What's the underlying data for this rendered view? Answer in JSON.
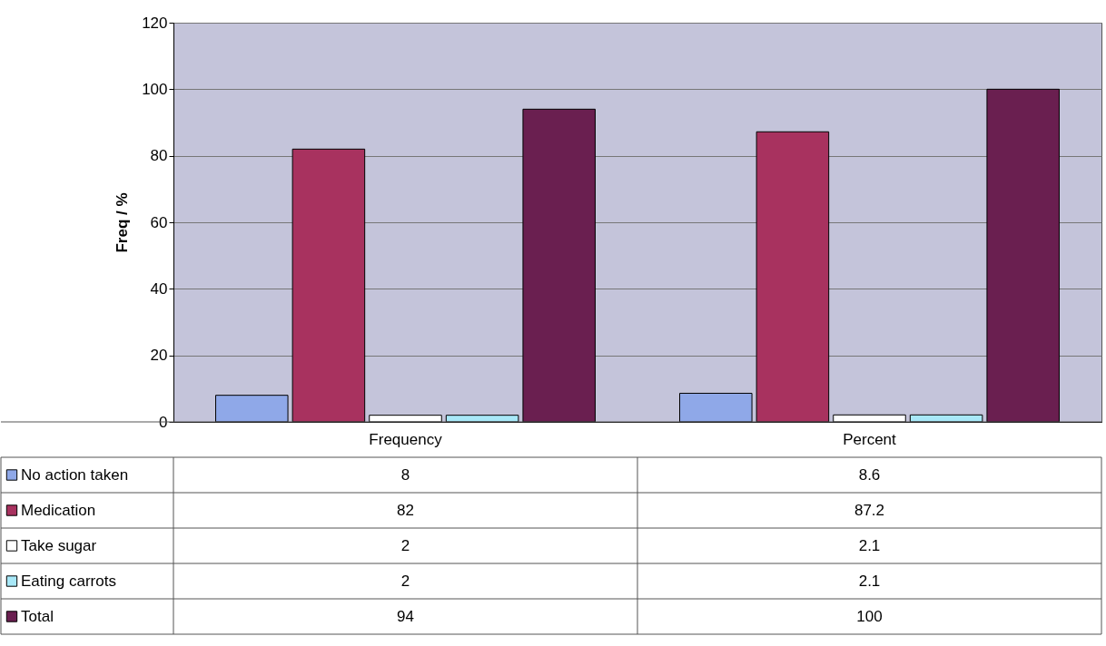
{
  "chart_data": {
    "type": "bar",
    "ylabel": "Freq / %",
    "categories": [
      "Frequency",
      "Percent"
    ],
    "series": [
      {
        "name": "No action taken",
        "color": "#8fa8e8",
        "values": [
          8,
          8.6
        ]
      },
      {
        "name": "Medication",
        "color": "#a8325f",
        "values": [
          82,
          87.2
        ]
      },
      {
        "name": "Take sugar",
        "color": "#ffffff",
        "values": [
          2,
          2.1
        ]
      },
      {
        "name": "Eating carrots",
        "color": "#a8e8f8",
        "values": [
          2,
          2.1
        ]
      },
      {
        "name": "Total",
        "color": "#6a1f50",
        "values": [
          94,
          100
        ]
      }
    ],
    "ylim": [
      0,
      120
    ],
    "yticks": [
      0,
      20,
      40,
      60,
      80,
      100,
      120
    ],
    "grid": "y",
    "legend": "bottom",
    "data_labels": true
  }
}
